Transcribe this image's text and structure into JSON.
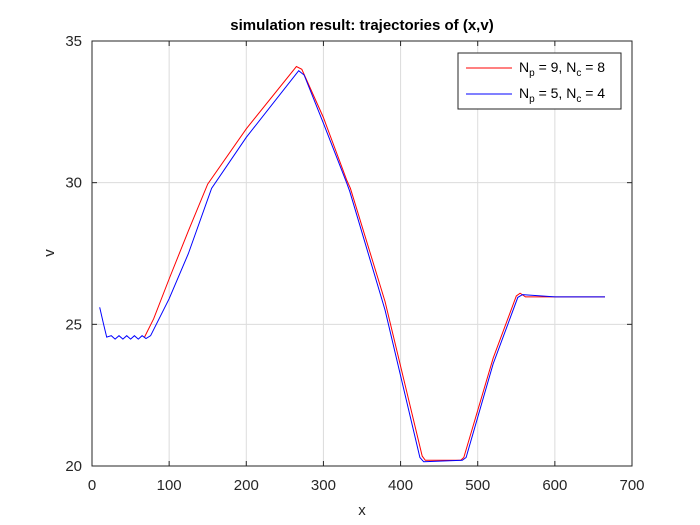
{
  "chart_data": {
    "type": "line",
    "title": "simulation result: trajectories of (x,v)",
    "xlabel": "x",
    "ylabel": "v",
    "xlim": [
      0,
      700
    ],
    "ylim": [
      20,
      35
    ],
    "xticks": [
      0,
      100,
      200,
      300,
      400,
      500,
      600,
      700
    ],
    "yticks": [
      20,
      25,
      30,
      35
    ],
    "grid": true,
    "legend_position": "top-right",
    "series": [
      {
        "name": "N_p = 9, N_c = 8",
        "legend": {
          "base1": "N",
          "sub1": "p",
          "mid": " = 9, N",
          "sub2": "c",
          "tail": " = 8"
        },
        "color": "#ff0000",
        "x": [
          68,
          80,
          100,
          125,
          150,
          200,
          265,
          272,
          300,
          330,
          335,
          380,
          428,
          432,
          478,
          482,
          520,
          550,
          555,
          562,
          600,
          665
        ],
        "y": [
          24.55,
          25.2,
          26.6,
          28.3,
          29.95,
          31.9,
          34.1,
          34.0,
          32.3,
          30.1,
          29.8,
          25.8,
          20.35,
          20.2,
          20.2,
          20.3,
          23.8,
          26.0,
          26.1,
          25.97,
          25.97,
          25.97
        ]
      },
      {
        "name": "N_p = 5, N_c = 4",
        "legend": {
          "base1": "N",
          "sub1": "p",
          "mid": " = 5, N",
          "sub2": "c",
          "tail": " = 4"
        },
        "color": "#0000ff",
        "x": [
          10,
          15,
          19,
          25,
          30,
          35,
          40,
          45,
          50,
          55,
          60,
          65,
          70,
          76,
          100,
          125,
          155,
          200,
          268,
          275,
          300,
          330,
          334,
          380,
          425,
          430,
          480,
          485,
          520,
          552,
          558,
          600,
          665
        ],
        "y": [
          25.6,
          25.0,
          24.55,
          24.6,
          24.48,
          24.6,
          24.48,
          24.6,
          24.48,
          24.6,
          24.48,
          24.6,
          24.5,
          24.6,
          25.9,
          27.5,
          29.8,
          31.6,
          33.95,
          33.8,
          32.1,
          30.0,
          29.7,
          25.5,
          20.3,
          20.15,
          20.2,
          20.3,
          23.6,
          25.95,
          26.05,
          25.97,
          25.97
        ]
      }
    ]
  }
}
